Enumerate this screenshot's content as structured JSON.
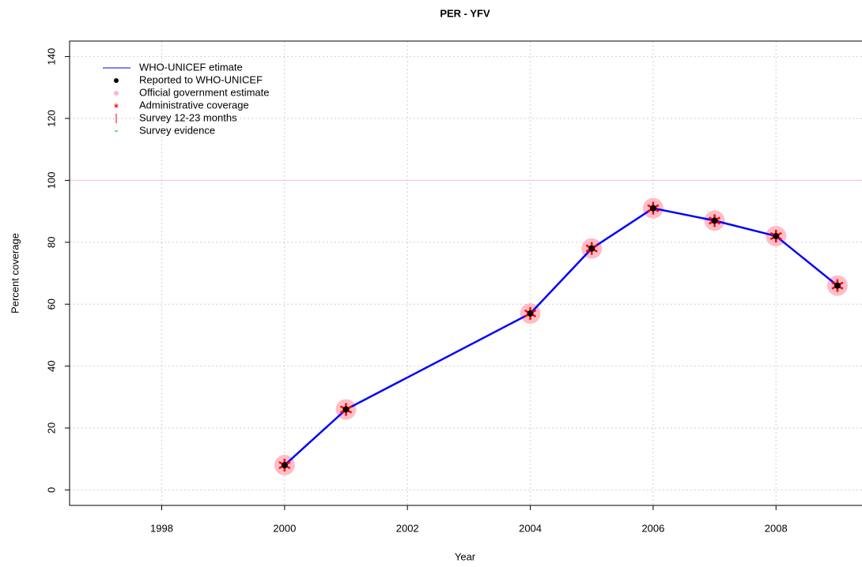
{
  "chart_data": {
    "type": "line",
    "title": "PER  -  YFV",
    "x_label": "Year",
    "y_label": "Percent coverage",
    "x": [
      2000,
      2001,
      2004,
      2005,
      2006,
      2007,
      2008,
      2009
    ],
    "series": [
      {
        "name": "WHO-UNICEF etimate",
        "color": "#0000ff",
        "marker": "line",
        "values": [
          8,
          26,
          57,
          78,
          91,
          87,
          82,
          66
        ]
      },
      {
        "name": "Reported to WHO-UNICEF",
        "color": "#000000",
        "marker": "dot",
        "values": [
          8,
          26,
          57,
          78,
          91,
          87,
          82,
          66
        ]
      },
      {
        "name": "Official government estimate",
        "color": "#ffb6c1",
        "marker": "circle",
        "values": [
          8,
          26,
          57,
          78,
          91,
          87,
          82,
          66
        ]
      },
      {
        "name": "Administrative coverage",
        "color": "#ff0000",
        "marker": "star",
        "values": [
          8,
          26,
          57,
          78,
          91,
          87,
          82,
          66
        ]
      },
      {
        "name": "Survey 12-23 months",
        "color": "#ff0000",
        "marker": "bar",
        "values": [
          null,
          null,
          null,
          null,
          null,
          null,
          null,
          null
        ]
      },
      {
        "name": "Survey evidence",
        "color": "#00b000",
        "marker": "dash",
        "values": [
          null,
          null,
          null,
          null,
          null,
          null,
          null,
          null
        ]
      }
    ],
    "reference_line": 100,
    "reference_color": "#ffc0cb",
    "xlim": [
      1996.5,
      2009.4
    ],
    "ylim": [
      -5,
      145
    ],
    "xticks": [
      1998,
      2000,
      2002,
      2004,
      2006,
      2008
    ],
    "yticks": [
      0,
      20,
      40,
      60,
      80,
      100,
      120,
      140
    ],
    "grid": true,
    "legend": "top-left"
  }
}
